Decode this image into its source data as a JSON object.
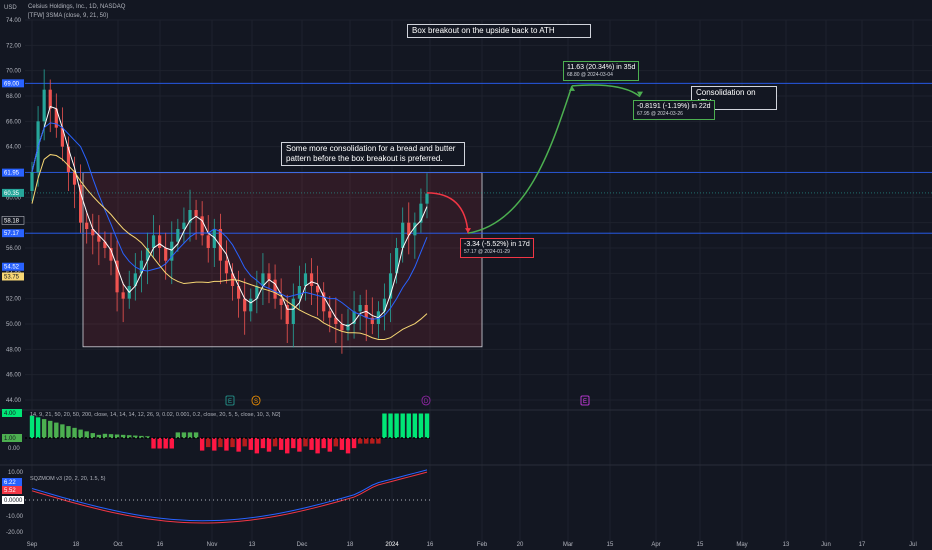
{
  "header": {
    "currency": "USD",
    "symbol_line": "Celsius Holdings, Inc., 1D, NASDAQ",
    "indicator_line": "[TFW] 3SMA (close, 9, 21, 50)"
  },
  "annotations": {
    "box_breakout": "Box breakout on the upside back to ATH",
    "consolidation_note": "Some more consolidation for a bread and butter pattern before the box breakout is preferred.",
    "consolidation_ath": "Consolidation on ATH"
  },
  "measurements": {
    "drop": {
      "main": "-3.34 (-5.52%) in 17d",
      "sub": "57.17 @ 2024-01-29"
    },
    "rise": {
      "main": "11.63 (20.34%) in 35d",
      "sub": "68.80 @ 2024-03-04"
    },
    "small_drop": {
      "main": "-0.8191 (-1.19%) in 22d",
      "sub": "67.95 @ 2024-03-26"
    }
  },
  "price_tags": {
    "ath": "69.00",
    "box_top": "61.95",
    "last": "60.35",
    "box_mid": "57.17",
    "sma_a": "58.18",
    "sma_b": "54.52",
    "sma_c": "53.75"
  },
  "indicator_labels": {
    "osc1": "14, 9, 21, 50, 20, 50, 200, close, 14, 14, 14, 12, 26, 9, 0.02, 0.001, 0.2, close, 20, 5, 5, close, 10, 3, N2]",
    "osc1_top": "4.00",
    "osc1_mid": "1.00",
    "osc1_zero": "0.00",
    "osc2": "SQZMOM v3 (20, 2, 20, 1.5, 5)",
    "osc2_a": "6.22",
    "osc2_b": "5.52",
    "osc2_zero": "0.0000",
    "osc2_axis": [
      "10.00",
      "-10.00",
      "-20.00"
    ]
  },
  "event_markers": [
    "E",
    "S",
    "D",
    "E"
  ],
  "chart_data": {
    "type": "candlestick",
    "y_axis_ticks": [
      "74.00",
      "72.00",
      "70.00",
      "68.00",
      "66.00",
      "64.00",
      "62.00",
      "60.00",
      "58.00",
      "56.00",
      "54.00",
      "52.00",
      "50.00",
      "48.00",
      "46.00",
      "44.00"
    ],
    "x_axis_ticks": [
      "Sep",
      "18",
      "Oct",
      "16",
      "Nov",
      "13",
      "Dec",
      "18",
      "2024",
      "16",
      "Feb",
      "20",
      "Mar",
      "15",
      "Apr",
      "15",
      "May",
      "13",
      "Jun",
      "17",
      "Jul"
    ],
    "ylim": [
      44,
      74
    ],
    "box": {
      "top": 61.95,
      "bottom": 48.2,
      "start": "Sep 29",
      "end": "Jan 29"
    },
    "levels": {
      "ath": 69.0,
      "box_top": 61.95,
      "mid": 57.17,
      "last": 60.35
    },
    "close_path": [
      62,
      66,
      68.5,
      67,
      65.5,
      64,
      62,
      61,
      58,
      57.5,
      57,
      56.5,
      56,
      55,
      52.5,
      52,
      53,
      54,
      55,
      56,
      57,
      56,
      55,
      56.5,
      57.5,
      58,
      59,
      58.5,
      57,
      56,
      57.5,
      55,
      54,
      53,
      52,
      51,
      52,
      53,
      54,
      53.5,
      52,
      51.5,
      50,
      52,
      53,
      54,
      53,
      52.5,
      51,
      50.5,
      50,
      49.5,
      50,
      51,
      51.5,
      50.5,
      50,
      51,
      52,
      54,
      56,
      58,
      57,
      58,
      59.5,
      60.3
    ],
    "projection": [
      60.35,
      57.17,
      68.8,
      67.95
    ]
  }
}
